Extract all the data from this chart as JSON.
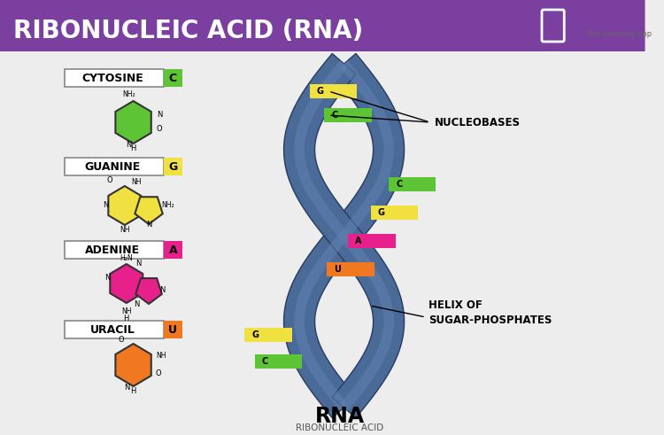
{
  "title": "RIBONUCLEIC ACID (RNA)",
  "title_bg": "#7B3FA0",
  "title_color": "#FFFFFF",
  "bg_color": "#EDEDED",
  "bases": [
    {
      "name": "CYTOSINE",
      "letter": "C",
      "color": "#5CC435",
      "struct_color": "#5CC435"
    },
    {
      "name": "GUANINE",
      "letter": "G",
      "color": "#F0E040",
      "struct_color": "#F0E040"
    },
    {
      "name": "ADENINE",
      "letter": "A",
      "color": "#E8208C",
      "struct_color": "#E8208C"
    },
    {
      "name": "URACIL",
      "letter": "U",
      "color": "#F07820",
      "struct_color": "#F07820"
    }
  ],
  "helix_color_light": "#6080B0",
  "helix_color_mid": "#4A6A98",
  "helix_color_dark": "#2A3A60",
  "strand_colors": {
    "G": "#F0E040",
    "C": "#5CC435",
    "A": "#E8208C",
    "U": "#F07820"
  },
  "rungs": [
    {
      "letter": "G",
      "side": "left"
    },
    {
      "letter": "C",
      "side": "left"
    },
    {
      "letter": "C",
      "side": "right"
    },
    {
      "letter": "G",
      "side": "right"
    },
    {
      "letter": "A",
      "side": "right"
    },
    {
      "letter": "U",
      "side": "right"
    },
    {
      "letter": "G",
      "side": "left"
    },
    {
      "letter": "C",
      "side": "left"
    }
  ],
  "rna_label": "RNA",
  "rna_sublabel": "RIBONUCLEIC ACID",
  "nucleobases_label": "NUCLEOBASES",
  "helix_label": "HELIX OF\nSUGAR-PHOSPHATES"
}
